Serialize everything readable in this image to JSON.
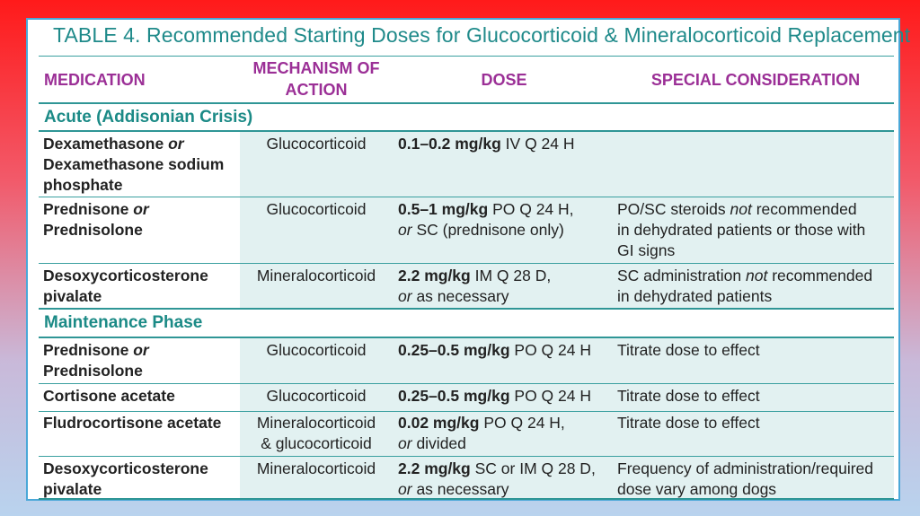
{
  "title": "TABLE 4. Recommended Starting Doses for Glucocorticoid & Mineralocorticoid Replacement",
  "headers": {
    "medication": "MEDICATION",
    "mechanism_line1": "MECHANISM OF",
    "mechanism_line2": "ACTION",
    "dose": "DOSE",
    "special": "SPECIAL CONSIDERATION"
  },
  "sections": {
    "acute": "Acute (Addisonian Crisis)",
    "maintenance": "Maintenance Phase"
  },
  "rows": {
    "r1": {
      "name_a": "Dexamethasone",
      "name_or": "or",
      "name_b": "Dexamethasone sodium",
      "name_c": "phosphate",
      "mechanism": "Glucocorticoid",
      "dose_bold": "0.1–0.2 mg/kg",
      "dose_rest": "IV Q 24 H"
    },
    "r2": {
      "name_a": "Prednisone",
      "name_or": "or",
      "name_b": "Prednisolone",
      "mechanism": "Glucocorticoid",
      "dose_bold": "0.5–1 mg/kg",
      "dose_rest": "PO Q 24 H,",
      "dose_or": "or",
      "dose_line2": "SC (prednisone only)",
      "spec_a": "PO/SC steroids",
      "spec_not": "not",
      "spec_b": "recommended",
      "spec_line2": "in dehydrated patients or those with",
      "spec_line3": "GI signs"
    },
    "r3": {
      "name_a": "Desoxycorticosterone",
      "name_b": "pivalate",
      "mechanism": "Mineralocorticoid",
      "dose_bold": "2.2 mg/kg",
      "dose_rest": "IM Q 28 D,",
      "dose_or": "or",
      "dose_line2": "as necessary",
      "spec_a": "SC administration",
      "spec_not": "not",
      "spec_b": "recommended",
      "spec_line2": "in dehydrated patients"
    },
    "r4": {
      "name_a": "Prednisone",
      "name_or": "or",
      "name_b": "Prednisolone",
      "mechanism": "Glucocorticoid",
      "dose_bold": "0.25–0.5 mg/kg",
      "dose_rest": "PO Q 24 H",
      "spec": "Titrate dose to effect"
    },
    "r5": {
      "name_a": "Cortisone acetate",
      "mechanism": "Glucocorticoid",
      "dose_bold": "0.25–0.5 mg/kg",
      "dose_rest": "PO Q 24 H",
      "spec": "Titrate dose to effect"
    },
    "r6": {
      "name_a": "Fludrocortisone acetate",
      "mechanism_line1": "Mineralocorticoid",
      "mechanism_line2": "& glucocorticoid",
      "dose_bold": "0.02 mg/kg",
      "dose_rest": "PO Q 24 H,",
      "dose_or": "or",
      "dose_line2": "divided",
      "spec": "Titrate dose to effect"
    },
    "r7": {
      "name_a": "Desoxycorticosterone",
      "name_b": "pivalate",
      "mechanism": "Mineralocorticoid",
      "dose_bold": "2.2 mg/kg",
      "dose_rest": "SC or IM Q 28 D,",
      "dose_or": "or",
      "dose_line2": "as necessary",
      "spec_line1": "Frequency of administration/required",
      "spec_line2": "dose vary among dogs"
    }
  }
}
